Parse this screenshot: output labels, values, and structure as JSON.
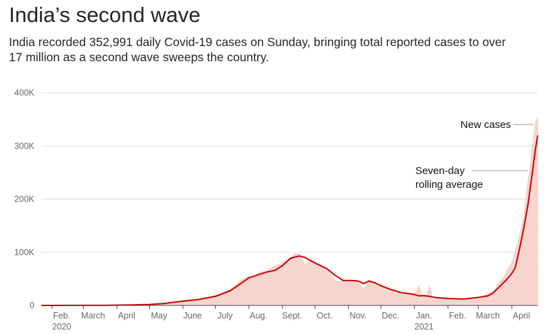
{
  "chart_data": {
    "type": "area",
    "title": "India’s second wave",
    "subtitle": "India recorded 352,991 daily Covid-19 cases on Sunday, bringing total reported cases to over 17 million as a second wave sweeps the country.",
    "ylim": [
      0,
      400000
    ],
    "y_ticks": [
      {
        "value": 0,
        "label": "0"
      },
      {
        "value": 100000,
        "label": "100K"
      },
      {
        "value": 200000,
        "label": "200K"
      },
      {
        "value": 300000,
        "label": "300K"
      },
      {
        "value": 400000,
        "label": "400K"
      }
    ],
    "x_ticks": [
      {
        "date": "2020-02-01",
        "label": "Feb.",
        "sublabel": "2020"
      },
      {
        "date": "2020-03-01",
        "label": "March"
      },
      {
        "date": "2020-04-01",
        "label": "April"
      },
      {
        "date": "2020-05-01",
        "label": "May"
      },
      {
        "date": "2020-06-01",
        "label": "June"
      },
      {
        "date": "2020-07-01",
        "label": "July"
      },
      {
        "date": "2020-08-01",
        "label": "Aug."
      },
      {
        "date": "2020-09-01",
        "label": "Sept."
      },
      {
        "date": "2020-10-01",
        "label": "Oct."
      },
      {
        "date": "2020-11-01",
        "label": "Nov."
      },
      {
        "date": "2020-12-01",
        "label": "Dec."
      },
      {
        "date": "2021-01-01",
        "label": "Jan.",
        "sublabel": "2021"
      },
      {
        "date": "2021-02-01",
        "label": "Feb."
      },
      {
        "date": "2021-03-01",
        "label": "March"
      },
      {
        "date": "2021-04-01",
        "label": "April"
      }
    ],
    "x_range": [
      "2020-01-22",
      "2021-04-25"
    ],
    "grid": true,
    "series": [
      {
        "name": "New cases",
        "style": "area",
        "color": "#f6d5cf",
        "points": [
          [
            "2020-01-22",
            0
          ],
          [
            "2020-03-01",
            0
          ],
          [
            "2020-03-20",
            200
          ],
          [
            "2020-04-01",
            400
          ],
          [
            "2020-04-15",
            1000
          ],
          [
            "2020-05-01",
            2000
          ],
          [
            "2020-05-15",
            4000
          ],
          [
            "2020-06-01",
            8500
          ],
          [
            "2020-06-15",
            11000
          ],
          [
            "2020-07-01",
            19000
          ],
          [
            "2020-07-15",
            30000
          ],
          [
            "2020-07-25",
            48000
          ],
          [
            "2020-08-01",
            55000
          ],
          [
            "2020-08-05",
            52000
          ],
          [
            "2020-08-10",
            62000
          ],
          [
            "2020-08-15",
            64000
          ],
          [
            "2020-08-20",
            69000
          ],
          [
            "2020-08-27",
            76000
          ],
          [
            "2020-09-01",
            80000
          ],
          [
            "2020-09-08",
            89000
          ],
          [
            "2020-09-12",
            97000
          ],
          [
            "2020-09-17",
            96000
          ],
          [
            "2020-09-22",
            75000
          ],
          [
            "2020-09-27",
            88000
          ],
          [
            "2020-10-01",
            81000
          ],
          [
            "2020-10-07",
            72000
          ],
          [
            "2020-10-14",
            63000
          ],
          [
            "2020-10-20",
            46000
          ],
          [
            "2020-10-25",
            45000
          ],
          [
            "2020-10-30",
            48000
          ],
          [
            "2020-11-04",
            46000
          ],
          [
            "2020-11-09",
            45000
          ],
          [
            "2020-11-15",
            30000
          ],
          [
            "2020-11-20",
            45000
          ],
          [
            "2020-11-25",
            44000
          ],
          [
            "2020-12-01",
            36000
          ],
          [
            "2020-12-08",
            32000
          ],
          [
            "2020-12-15",
            24000
          ],
          [
            "2020-12-22",
            23000
          ],
          [
            "2021-01-01",
            19000
          ],
          [
            "2021-01-05",
            37000
          ],
          [
            "2021-01-08",
            18000
          ],
          [
            "2021-01-12",
            16000
          ],
          [
            "2021-01-15",
            37000
          ],
          [
            "2021-01-18",
            11000
          ],
          [
            "2021-01-25",
            15000
          ],
          [
            "2021-02-01",
            11000
          ],
          [
            "2021-02-15",
            12000
          ],
          [
            "2021-03-01",
            15000
          ],
          [
            "2021-03-10",
            22000
          ],
          [
            "2021-03-15",
            26000
          ],
          [
            "2021-03-20",
            43000
          ],
          [
            "2021-03-25",
            55000
          ],
          [
            "2021-04-01",
            81000
          ],
          [
            "2021-04-08",
            130000
          ],
          [
            "2021-04-12",
            168000
          ],
          [
            "2021-04-16",
            234000
          ],
          [
            "2021-04-18",
            262000
          ],
          [
            "2021-04-21",
            315000
          ],
          [
            "2021-04-23",
            346000
          ],
          [
            "2021-04-25",
            352991
          ]
        ]
      },
      {
        "name": "Seven-day rolling average",
        "style": "line",
        "color": "#cc0000",
        "points": [
          [
            "2020-01-22",
            0
          ],
          [
            "2020-03-20",
            100
          ],
          [
            "2020-04-15",
            900
          ],
          [
            "2020-05-01",
            1800
          ],
          [
            "2020-05-15",
            3800
          ],
          [
            "2020-06-01",
            8200
          ],
          [
            "2020-06-15",
            11000
          ],
          [
            "2020-07-01",
            17000
          ],
          [
            "2020-07-15",
            28000
          ],
          [
            "2020-07-25",
            42000
          ],
          [
            "2020-08-01",
            52000
          ],
          [
            "2020-08-10",
            58000
          ],
          [
            "2020-08-18",
            63000
          ],
          [
            "2020-08-25",
            66000
          ],
          [
            "2020-09-01",
            75000
          ],
          [
            "2020-09-08",
            88000
          ],
          [
            "2020-09-12",
            91000
          ],
          [
            "2020-09-17",
            93000
          ],
          [
            "2020-09-22",
            90000
          ],
          [
            "2020-09-28",
            83000
          ],
          [
            "2020-10-05",
            76000
          ],
          [
            "2020-10-12",
            69000
          ],
          [
            "2020-10-20",
            56000
          ],
          [
            "2020-10-27",
            47000
          ],
          [
            "2020-11-03",
            47000
          ],
          [
            "2020-11-10",
            46000
          ],
          [
            "2020-11-15",
            41000
          ],
          [
            "2020-11-20",
            46000
          ],
          [
            "2020-11-25",
            43000
          ],
          [
            "2020-12-01",
            37000
          ],
          [
            "2020-12-10",
            30000
          ],
          [
            "2020-12-20",
            24000
          ],
          [
            "2020-12-31",
            21000
          ],
          [
            "2021-01-05",
            18000
          ],
          [
            "2021-01-10",
            18500
          ],
          [
            "2021-01-15",
            17000
          ],
          [
            "2021-01-20",
            15000
          ],
          [
            "2021-02-01",
            13000
          ],
          [
            "2021-02-15",
            12000
          ],
          [
            "2021-03-01",
            15000
          ],
          [
            "2021-03-10",
            18000
          ],
          [
            "2021-03-15",
            24000
          ],
          [
            "2021-03-20",
            34000
          ],
          [
            "2021-03-27",
            48000
          ],
          [
            "2021-04-01",
            60000
          ],
          [
            "2021-04-04",
            70000
          ],
          [
            "2021-04-08",
            105000
          ],
          [
            "2021-04-12",
            145000
          ],
          [
            "2021-04-16",
            190000
          ],
          [
            "2021-04-20",
            250000
          ],
          [
            "2021-04-23",
            296000
          ],
          [
            "2021-04-25",
            320000
          ]
        ]
      }
    ],
    "annotations": [
      {
        "lines": [
          "New cases"
        ],
        "series": "New cases"
      },
      {
        "lines": [
          "Seven-day",
          "rolling average"
        ],
        "series": "Seven-day rolling average"
      }
    ]
  }
}
